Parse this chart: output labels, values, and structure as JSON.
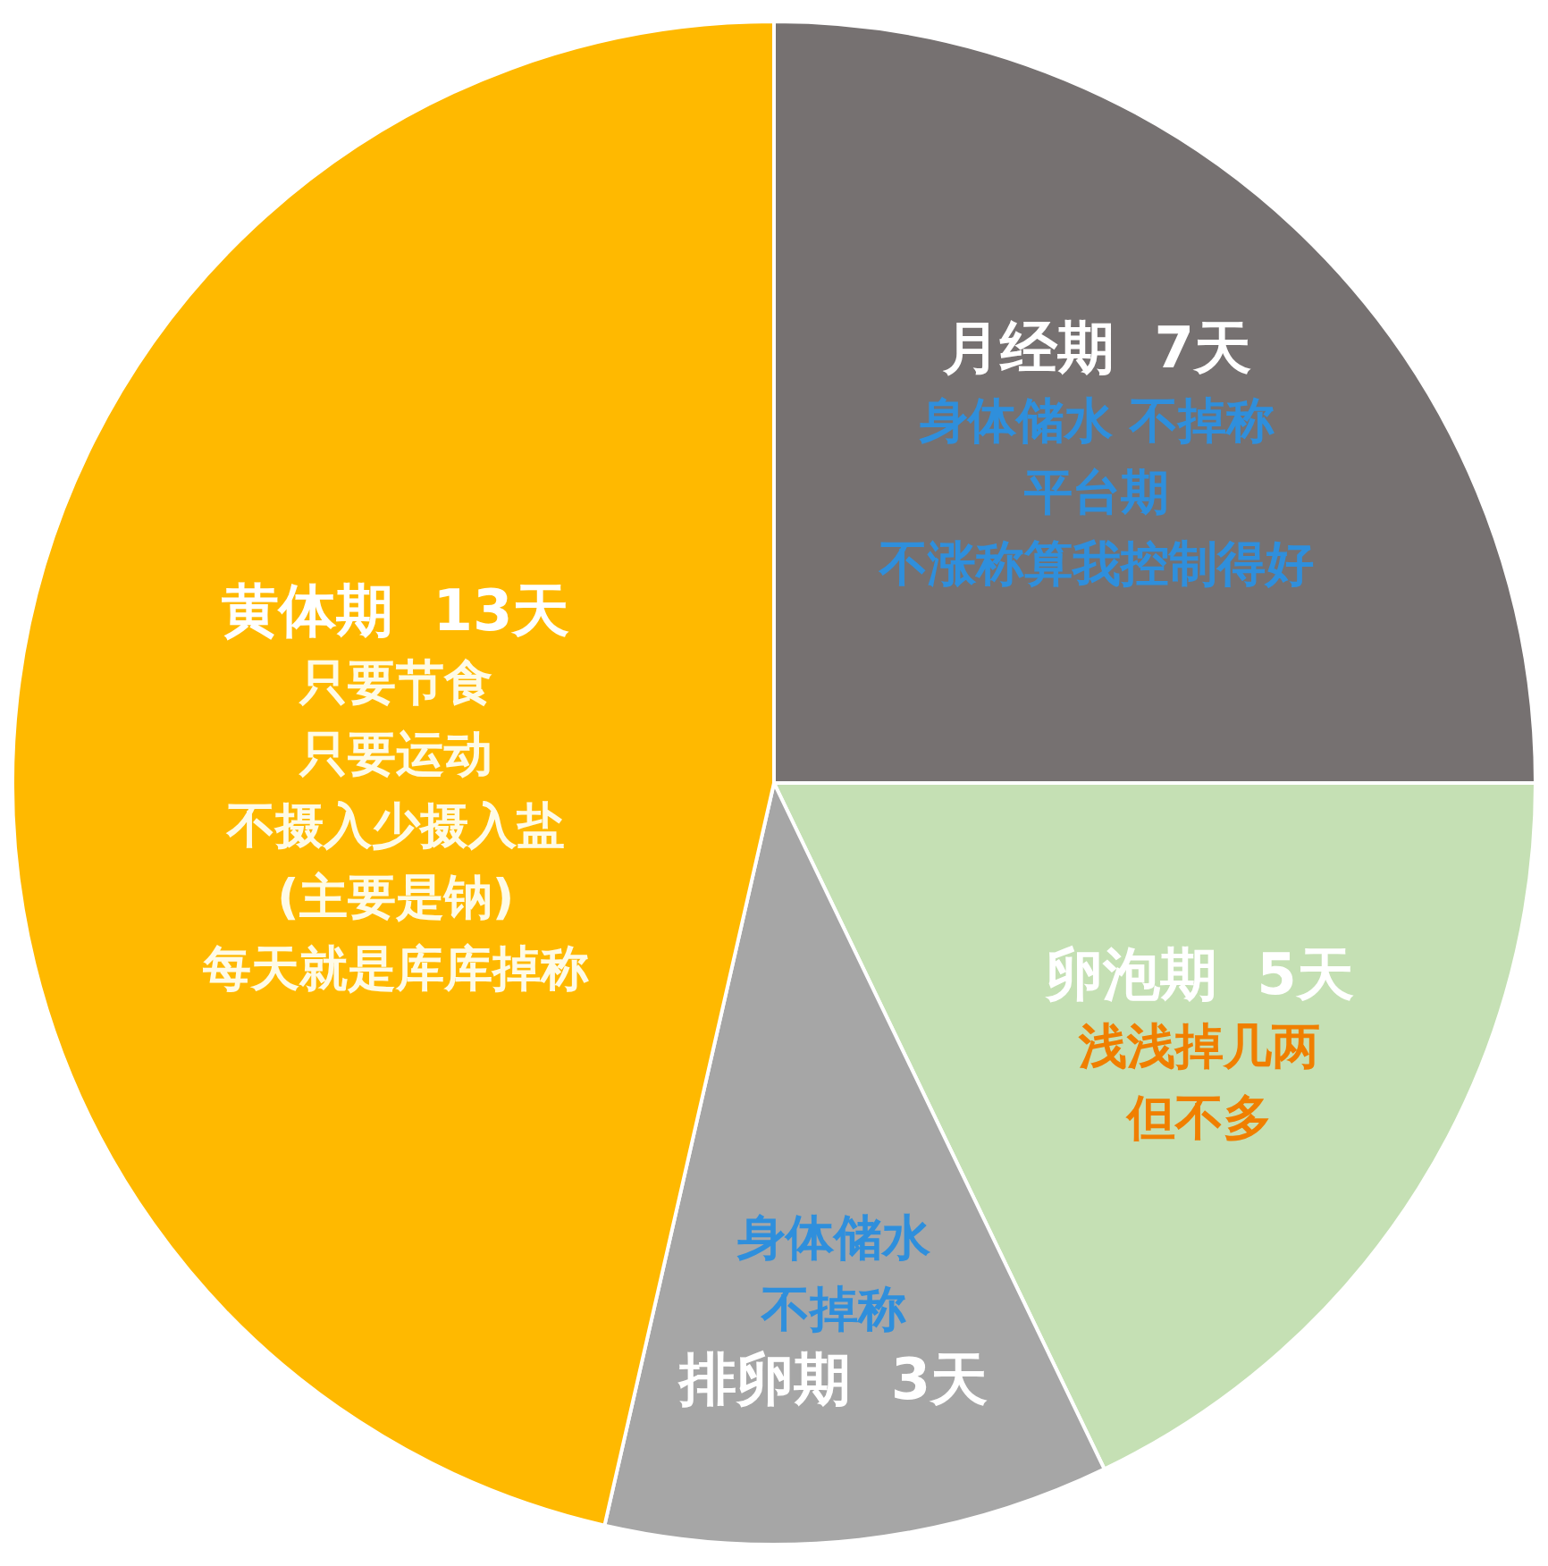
{
  "chart_data": {
    "type": "pie",
    "categories": [
      "月经期",
      "卵泡期",
      "排卵期",
      "黄体期"
    ],
    "values": [
      7,
      5,
      3,
      13
    ],
    "value_labels": [
      "7天",
      "5天",
      "3天",
      "13天"
    ],
    "colors": [
      "#767171",
      "#c5e0b4",
      "#a6a6a6",
      "#ffb900"
    ],
    "legend": false,
    "annotations": [
      {
        "text": "身体储水 不掉称",
        "x": "月经期"
      },
      {
        "text": "平台期",
        "x": "月经期"
      },
      {
        "text": "不涨称算我控制得好",
        "x": "月经期"
      },
      {
        "text": "浅浅掉几两",
        "x": "卵泡期"
      },
      {
        "text": "但不多",
        "x": "卵泡期"
      },
      {
        "text": "身体储水",
        "x": "排卵期"
      },
      {
        "text": "不掉称",
        "x": "排卵期"
      },
      {
        "text": "只要节食",
        "x": "黄体期"
      },
      {
        "text": "只要运动",
        "x": "黄体期"
      },
      {
        "text": "不摄入少摄入盐",
        "x": "黄体期"
      },
      {
        "text": "(主要是钠)",
        "x": "黄体期"
      },
      {
        "text": "每天就是库库掉称",
        "x": "黄体期"
      }
    ]
  }
}
